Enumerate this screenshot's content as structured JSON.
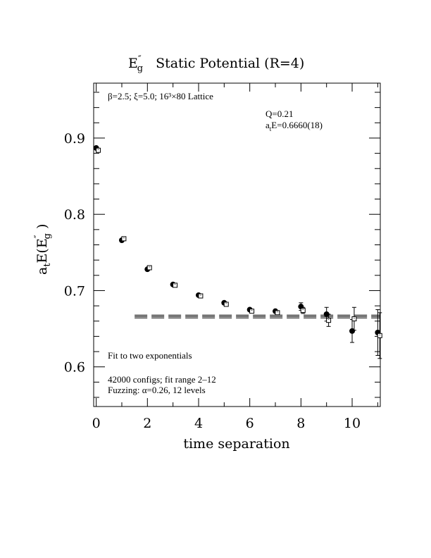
{
  "chart_data": {
    "type": "scatter",
    "title": {
      "symbol": "E",
      "superscript": "″",
      "subscript": "g",
      "text": "Static Potential (R=4)"
    },
    "xlabel": "time separation",
    "ylabel": {
      "prefix": "a",
      "prefix_sub": "t",
      "main": "E(E",
      "main_sup": "″",
      "main_sub": "g",
      "suffix": " )"
    },
    "xlim": [
      -0.1,
      11.1
    ],
    "ylim": [
      0.548,
      0.972
    ],
    "x_ticks": [
      0,
      2,
      4,
      6,
      8,
      10
    ],
    "y_ticks": [
      0.6,
      0.7,
      0.8,
      0.9
    ],
    "x_tick_labels": [
      "0",
      "2",
      "4",
      "6",
      "8",
      "10"
    ],
    "y_tick_labels": [
      "0.6",
      "0.7",
      "0.8",
      "0.9"
    ],
    "x_minor_step": 1,
    "y_minor_step": 0.02,
    "series": [
      {
        "marker": "filled-circle",
        "color": "#000000",
        "x": [
          0,
          1,
          2,
          3,
          4,
          5,
          6,
          7,
          8,
          9,
          10,
          11
        ],
        "y": [
          0.887,
          0.766,
          0.728,
          0.708,
          0.694,
          0.684,
          0.675,
          0.673,
          0.679,
          0.669,
          0.647,
          0.645
        ],
        "yerr": [
          0.001,
          0.001,
          0.001,
          0.001,
          0.001,
          0.002,
          0.002,
          0.002,
          0.005,
          0.009,
          0.015,
          0.03
        ]
      },
      {
        "marker": "open-square",
        "color": "#000000",
        "x": [
          0.08,
          1.08,
          2.08,
          3.08,
          4.08,
          5.08,
          6.08,
          7.08,
          8.08,
          9.08,
          10.08,
          11.08
        ],
        "y": [
          0.884,
          0.768,
          0.73,
          0.707,
          0.693,
          0.682,
          0.673,
          0.671,
          0.674,
          0.661,
          0.663,
          0.641
        ],
        "yerr": [
          0.001,
          0.001,
          0.001,
          0.001,
          0.001,
          0.002,
          0.002,
          0.002,
          0.004,
          0.008,
          0.015,
          0.03
        ]
      }
    ],
    "fit": {
      "value": 0.666,
      "error": 0.0018,
      "x_range": [
        1.5,
        11.1
      ]
    },
    "annotations": {
      "lattice": "β=2.5; ξ=5.0; 16³×80 Lattice",
      "q": "Q=0.21",
      "energy_prefix": "a",
      "energy_sub": "t",
      "energy_text": "E=0.6660(18)",
      "fit_desc": "Fit to two exponentials",
      "configs": "42000 configs; fit range 2–12",
      "fuzzing": "Fuzzing: α=0.26, 12 levels"
    }
  }
}
